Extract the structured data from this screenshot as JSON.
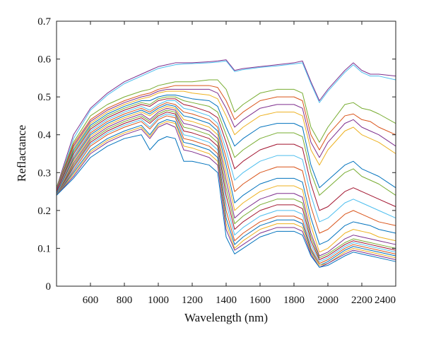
{
  "chart_data": {
    "type": "line",
    "title": "",
    "xlabel": "Wavelength (nm)",
    "ylabel": "Reflactance",
    "xlim": [
      400,
      2400
    ],
    "ylim": [
      0,
      0.7
    ],
    "xticks": [
      600,
      800,
      1000,
      1200,
      1400,
      1600,
      1800,
      2000,
      2200,
      2400
    ],
    "yticks": [
      0,
      0.1,
      0.2,
      0.3,
      0.4,
      0.5,
      0.6,
      0.7
    ],
    "xtick_labels": [
      "600",
      "800",
      "1000",
      "1200",
      "1400",
      "1600",
      "1800",
      "2000",
      "2200",
      "2400"
    ],
    "ytick_labels": [
      "0",
      "0.1",
      "0.2",
      "0.3",
      "0.4",
      "0.5",
      "0.6",
      "0.7"
    ],
    "grid": false,
    "legend": "none",
    "x": [
      400,
      500,
      600,
      700,
      800,
      900,
      950,
      1000,
      1050,
      1100,
      1150,
      1200,
      1300,
      1350,
      1400,
      1450,
      1500,
      1600,
      1700,
      1800,
      1850,
      1900,
      1950,
      2000,
      2100,
      2150,
      2200,
      2250,
      2300,
      2400
    ],
    "series": [
      {
        "color": "#7e2f8e",
        "values": [
          0.26,
          0.4,
          0.47,
          0.51,
          0.54,
          0.56,
          0.57,
          0.58,
          0.585,
          0.59,
          0.59,
          0.59,
          0.593,
          0.595,
          0.598,
          0.57,
          0.575,
          0.58,
          0.585,
          0.59,
          0.595,
          0.54,
          0.49,
          0.52,
          0.57,
          0.59,
          0.57,
          0.56,
          0.56,
          0.555
        ]
      },
      {
        "color": "#4dbeee",
        "values": [
          0.255,
          0.39,
          0.465,
          0.505,
          0.535,
          0.555,
          0.565,
          0.575,
          0.58,
          0.585,
          0.587,
          0.588,
          0.59,
          0.592,
          0.595,
          0.567,
          0.572,
          0.578,
          0.582,
          0.587,
          0.59,
          0.535,
          0.485,
          0.515,
          0.565,
          0.585,
          0.565,
          0.555,
          0.555,
          0.545
        ]
      },
      {
        "color": "#77ac30",
        "values": [
          0.26,
          0.38,
          0.45,
          0.48,
          0.5,
          0.515,
          0.52,
          0.53,
          0.535,
          0.54,
          0.54,
          0.54,
          0.545,
          0.545,
          0.52,
          0.46,
          0.48,
          0.51,
          0.52,
          0.52,
          0.51,
          0.42,
          0.38,
          0.42,
          0.48,
          0.485,
          0.47,
          0.465,
          0.455,
          0.43
        ]
      },
      {
        "color": "#d95319",
        "values": [
          0.255,
          0.375,
          0.44,
          0.47,
          0.49,
          0.505,
          0.51,
          0.52,
          0.525,
          0.53,
          0.53,
          0.53,
          0.53,
          0.525,
          0.49,
          0.44,
          0.46,
          0.49,
          0.5,
          0.5,
          0.49,
          0.4,
          0.36,
          0.4,
          0.45,
          0.455,
          0.44,
          0.435,
          0.42,
          0.4
        ]
      },
      {
        "color": "#7e2f8e",
        "values": [
          0.255,
          0.37,
          0.435,
          0.465,
          0.485,
          0.5,
          0.505,
          0.515,
          0.52,
          0.52,
          0.52,
          0.52,
          0.52,
          0.51,
          0.47,
          0.42,
          0.44,
          0.47,
          0.48,
          0.48,
          0.47,
          0.38,
          0.34,
          0.38,
          0.43,
          0.44,
          0.42,
          0.41,
          0.4,
          0.37
        ]
      },
      {
        "color": "#edb120",
        "values": [
          0.25,
          0.365,
          0.43,
          0.46,
          0.48,
          0.495,
          0.5,
          0.51,
          0.515,
          0.515,
          0.515,
          0.51,
          0.505,
          0.495,
          0.45,
          0.4,
          0.42,
          0.45,
          0.46,
          0.46,
          0.45,
          0.36,
          0.32,
          0.36,
          0.41,
          0.42,
          0.4,
          0.39,
          0.38,
          0.35
        ]
      },
      {
        "color": "#0072bd",
        "values": [
          0.25,
          0.36,
          0.425,
          0.455,
          0.475,
          0.49,
          0.49,
          0.5,
          0.505,
          0.505,
          0.5,
          0.495,
          0.49,
          0.475,
          0.42,
          0.37,
          0.39,
          0.42,
          0.43,
          0.43,
          0.42,
          0.32,
          0.26,
          0.28,
          0.32,
          0.33,
          0.31,
          0.3,
          0.29,
          0.26
        ]
      },
      {
        "color": "#77ac30",
        "values": [
          0.25,
          0.355,
          0.42,
          0.45,
          0.47,
          0.485,
          0.48,
          0.495,
          0.5,
          0.5,
          0.49,
          0.485,
          0.475,
          0.46,
          0.4,
          0.34,
          0.36,
          0.39,
          0.405,
          0.405,
          0.395,
          0.3,
          0.24,
          0.26,
          0.3,
          0.31,
          0.29,
          0.28,
          0.27,
          0.24
        ]
      },
      {
        "color": "#a2142f",
        "values": [
          0.25,
          0.35,
          0.415,
          0.445,
          0.465,
          0.48,
          0.475,
          0.49,
          0.495,
          0.495,
          0.48,
          0.475,
          0.46,
          0.445,
          0.38,
          0.31,
          0.33,
          0.36,
          0.375,
          0.375,
          0.365,
          0.27,
          0.2,
          0.21,
          0.25,
          0.26,
          0.25,
          0.24,
          0.23,
          0.21
        ]
      },
      {
        "color": "#4dbeee",
        "values": [
          0.245,
          0.345,
          0.41,
          0.44,
          0.46,
          0.475,
          0.465,
          0.48,
          0.49,
          0.49,
          0.47,
          0.465,
          0.45,
          0.43,
          0.36,
          0.28,
          0.3,
          0.33,
          0.345,
          0.345,
          0.335,
          0.24,
          0.17,
          0.18,
          0.22,
          0.23,
          0.22,
          0.21,
          0.2,
          0.18
        ]
      },
      {
        "color": "#d95319",
        "values": [
          0.245,
          0.34,
          0.405,
          0.435,
          0.455,
          0.47,
          0.46,
          0.475,
          0.485,
          0.48,
          0.46,
          0.455,
          0.44,
          0.42,
          0.34,
          0.25,
          0.27,
          0.3,
          0.315,
          0.315,
          0.305,
          0.21,
          0.14,
          0.15,
          0.19,
          0.2,
          0.19,
          0.18,
          0.17,
          0.16
        ]
      },
      {
        "color": "#0072bd",
        "values": [
          0.245,
          0.335,
          0.4,
          0.43,
          0.45,
          0.465,
          0.455,
          0.47,
          0.48,
          0.475,
          0.45,
          0.445,
          0.43,
          0.41,
          0.32,
          0.22,
          0.24,
          0.27,
          0.285,
          0.285,
          0.275,
          0.18,
          0.11,
          0.12,
          0.16,
          0.17,
          0.165,
          0.16,
          0.15,
          0.14
        ]
      },
      {
        "color": "#edb120",
        "values": [
          0.24,
          0.33,
          0.395,
          0.425,
          0.445,
          0.46,
          0.45,
          0.465,
          0.475,
          0.47,
          0.44,
          0.435,
          0.42,
          0.4,
          0.3,
          0.2,
          0.22,
          0.25,
          0.265,
          0.265,
          0.255,
          0.16,
          0.09,
          0.1,
          0.14,
          0.15,
          0.145,
          0.14,
          0.13,
          0.12
        ]
      },
      {
        "color": "#7e2f8e",
        "values": [
          0.24,
          0.325,
          0.39,
          0.42,
          0.44,
          0.455,
          0.44,
          0.46,
          0.47,
          0.465,
          0.43,
          0.425,
          0.41,
          0.39,
          0.28,
          0.18,
          0.2,
          0.23,
          0.245,
          0.245,
          0.235,
          0.14,
          0.08,
          0.09,
          0.125,
          0.135,
          0.13,
          0.125,
          0.12,
          0.11
        ]
      },
      {
        "color": "#77ac30",
        "values": [
          0.24,
          0.32,
          0.385,
          0.415,
          0.435,
          0.45,
          0.435,
          0.455,
          0.465,
          0.46,
          0.42,
          0.415,
          0.4,
          0.38,
          0.26,
          0.165,
          0.185,
          0.215,
          0.23,
          0.23,
          0.22,
          0.13,
          0.075,
          0.085,
          0.115,
          0.125,
          0.12,
          0.115,
          0.11,
          0.1
        ]
      },
      {
        "color": "#a2142f",
        "values": [
          0.24,
          0.315,
          0.38,
          0.41,
          0.43,
          0.445,
          0.43,
          0.45,
          0.46,
          0.455,
          0.41,
          0.405,
          0.39,
          0.37,
          0.24,
          0.15,
          0.17,
          0.2,
          0.215,
          0.215,
          0.205,
          0.12,
          0.07,
          0.08,
          0.11,
          0.12,
          0.115,
          0.11,
          0.105,
          0.095
        ]
      },
      {
        "color": "#4dbeee",
        "values": [
          0.24,
          0.31,
          0.375,
          0.405,
          0.425,
          0.44,
          0.42,
          0.445,
          0.455,
          0.45,
          0.4,
          0.395,
          0.38,
          0.36,
          0.22,
          0.135,
          0.155,
          0.185,
          0.2,
          0.2,
          0.19,
          0.11,
          0.065,
          0.075,
          0.105,
          0.115,
          0.11,
          0.105,
          0.1,
          0.09
        ]
      },
      {
        "color": "#d95319",
        "values": [
          0.24,
          0.305,
          0.37,
          0.4,
          0.42,
          0.435,
          0.415,
          0.44,
          0.45,
          0.445,
          0.39,
          0.385,
          0.37,
          0.35,
          0.2,
          0.12,
          0.14,
          0.17,
          0.185,
          0.185,
          0.175,
          0.1,
          0.06,
          0.07,
          0.1,
          0.11,
          0.105,
          0.1,
          0.095,
          0.085
        ]
      },
      {
        "color": "#0072bd",
        "values": [
          0.24,
          0.3,
          0.36,
          0.39,
          0.41,
          0.425,
          0.4,
          0.43,
          0.44,
          0.435,
          0.38,
          0.375,
          0.36,
          0.34,
          0.18,
          0.11,
          0.13,
          0.16,
          0.175,
          0.175,
          0.165,
          0.095,
          0.055,
          0.065,
          0.095,
          0.105,
          0.1,
          0.095,
          0.09,
          0.08
        ]
      },
      {
        "color": "#edb120",
        "values": [
          0.24,
          0.295,
          0.355,
          0.385,
          0.405,
          0.42,
          0.395,
          0.425,
          0.435,
          0.43,
          0.37,
          0.365,
          0.35,
          0.33,
          0.165,
          0.1,
          0.12,
          0.15,
          0.165,
          0.165,
          0.155,
          0.09,
          0.055,
          0.06,
          0.09,
          0.1,
          0.095,
          0.09,
          0.085,
          0.075
        ]
      },
      {
        "color": "#7e2f8e",
        "values": [
          0.24,
          0.29,
          0.35,
          0.38,
          0.4,
          0.415,
          0.39,
          0.42,
          0.43,
          0.42,
          0.36,
          0.355,
          0.34,
          0.32,
          0.15,
          0.095,
          0.11,
          0.14,
          0.155,
          0.155,
          0.145,
          0.085,
          0.05,
          0.06,
          0.085,
          0.095,
          0.09,
          0.085,
          0.08,
          0.07
        ]
      },
      {
        "color": "#0072bd",
        "values": [
          0.24,
          0.285,
          0.34,
          0.37,
          0.39,
          0.4,
          0.36,
          0.385,
          0.395,
          0.39,
          0.33,
          0.33,
          0.32,
          0.3,
          0.13,
          0.085,
          0.1,
          0.13,
          0.145,
          0.145,
          0.135,
          0.08,
          0.05,
          0.055,
          0.08,
          0.09,
          0.085,
          0.08,
          0.075,
          0.065
        ]
      }
    ]
  }
}
